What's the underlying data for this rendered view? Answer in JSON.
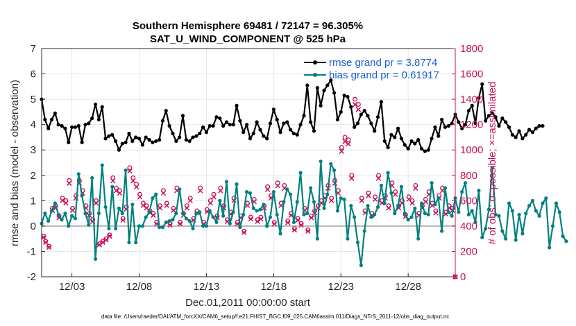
{
  "chart_data": {
    "type": "line",
    "title": "Southern Hemisphere 69481 / 72147 = 96.305%",
    "subtitle": "SAT_U_WIND_COMPONENT @ 525 hPa",
    "xlabel": "Dec.01,2011 00:00:00 start",
    "ylabel": "rmse and bias (model - observation)",
    "y2label": "# of obs: o=possible; ×=assimilated",
    "ylim": [
      -2,
      7
    ],
    "y2lim": [
      0,
      1800
    ],
    "xlim": [
      0.75,
      31.5
    ],
    "yticks": [
      "-2",
      "-1",
      "0",
      "1",
      "2",
      "3",
      "4",
      "5",
      "6",
      "7"
    ],
    "y2ticks": [
      "0",
      "200",
      "400",
      "600",
      "800",
      "1000",
      "1200",
      "1400",
      "1600",
      "1800"
    ],
    "xticks": [
      {
        "x": 3,
        "label": "12/03"
      },
      {
        "x": 8,
        "label": "12/08"
      },
      {
        "x": 13,
        "label": "12/13"
      },
      {
        "x": 18,
        "label": "12/18"
      },
      {
        "x": 23,
        "label": "12/23"
      },
      {
        "x": 28,
        "label": "12/28"
      }
    ],
    "legend_position": "top-right",
    "grid": true,
    "x_start": 0.75,
    "x_step": 0.25,
    "series": [
      {
        "name": "rmse grand pr = 3.8774",
        "color": "#000000",
        "marker": "circle",
        "values": [
          5.0,
          4.2,
          3.85,
          4.2,
          4.45,
          4.0,
          3.95,
          3.85,
          3.3,
          3.9,
          3.9,
          3.95,
          3.3,
          4.0,
          4.05,
          4.25,
          4.8,
          4.2,
          4.7,
          3.45,
          3.55,
          3.6,
          3.35,
          3.0,
          3.25,
          3.3,
          3.65,
          3.35,
          3.5,
          3.45,
          3.2,
          3.5,
          3.4,
          3.3,
          3.35,
          3.4,
          4.15,
          4.55,
          3.95,
          3.65,
          3.35,
          3.5,
          4.35,
          3.4,
          3.35,
          3.5,
          3.55,
          3.65,
          3.9,
          3.7,
          3.95,
          3.95,
          4.3,
          4.25,
          3.95,
          4.1,
          4.0,
          4.0,
          4.75,
          4.15,
          3.7,
          4.0,
          3.45,
          3.65,
          4.1,
          3.8,
          3.55,
          3.45,
          4.05,
          4.6,
          4.2,
          3.7,
          4.05,
          4.1,
          3.8,
          3.65,
          3.6,
          4.0,
          4.35,
          5.55,
          4.1,
          3.75,
          5.45,
          4.75,
          5.35,
          5.55,
          5.75,
          5.25,
          4.2,
          4.5,
          5.15,
          5.1,
          4.7,
          3.9,
          4.05,
          4.4,
          4.55,
          4.35,
          4.05,
          3.75,
          4.3,
          4.9,
          3.35,
          3.1,
          3.6,
          3.5,
          3.85,
          3.45,
          3.2,
          3.05,
          3.35,
          3.25,
          3.4,
          3.05,
          2.95,
          3.0,
          3.45,
          3.9,
          3.55,
          4.2,
          3.9,
          3.95,
          4.05,
          4.4,
          4.1,
          3.85,
          4.0,
          4.55,
          4.75,
          4.05,
          5.05,
          5.6,
          4.15,
          4.35,
          4.45,
          4.3,
          3.95,
          4.25,
          4.1,
          3.9,
          3.6,
          3.5,
          3.75,
          3.45,
          3.6,
          3.8,
          3.7,
          3.85,
          3.95,
          3.95
        ]
      },
      {
        "name": "bias grand pr = 0.61917",
        "color": "#008080",
        "marker": "circle",
        "values": [
          0.1,
          0.5,
          0.2,
          0.6,
          0.9,
          0.45,
          0.25,
          0.5,
          0.0,
          0.4,
          0.3,
          2.05,
          1.2,
          0.5,
          0.05,
          1.9,
          -1.3,
          0.5,
          2.4,
          0.75,
          -0.1,
          1.55,
          -0.1,
          0.7,
          0.5,
          2.2,
          -0.65,
          0.85,
          -0.65,
          0.0,
          0.0,
          0.35,
          0.55,
          1.1,
          1.25,
          -0.05,
          -0.05,
          0.15,
          0.2,
          0.25,
          0.5,
          1.45,
          0.5,
          0.3,
          0.2,
          -0.1,
          0.5,
          0.55,
          0.0,
          0.0,
          0.6,
          0.35,
          0.15,
          1.0,
          0.4,
          1.75,
          0.1,
          0.55,
          1.65,
          -0.05,
          0.45,
          1.35,
          1.3,
          0.7,
          0.6,
          0.65,
          0.85,
          0.0,
          0.35,
          1.35,
          0.45,
          -0.3,
          0.95,
          1.45,
          1.25,
          0.15,
          0.95,
          2.1,
          0.45,
          0.5,
          1.5,
          0.95,
          -0.5,
          2.55,
          0.7,
          1.25,
          2.45,
          2.2,
          0.6,
          1.1,
          1.05,
          -0.5,
          0.8,
          0.35,
          -0.65,
          -1.55,
          -0.2,
          0.8,
          0.35,
          0.45,
          0.75,
          1.6,
          0.9,
          2.1,
          1.3,
          0.5,
          0.8,
          1.55,
          0.5,
          0.25,
          0.35,
          0.7,
          -0.5,
          0.9,
          0.5,
          0.45,
          1.7,
          0.85,
          1.1,
          -0.2,
          1.5,
          0.55,
          0.4,
          1.1,
          0.55,
          1.35,
          1.7,
          0.45,
          0.6,
          0.15,
          1.4,
          -0.45,
          -0.1,
          0.65,
          2.3,
          0.45,
          0.4,
          -0.2,
          -0.5,
          0.9,
          0.6,
          -0.55,
          0.45,
          -0.3,
          0.5,
          0.8,
          1.0,
          0.6,
          0.4,
          0.9,
          1.1,
          -0.85,
          0.0,
          0.9,
          0.55,
          -0.4,
          -0.6
        ]
      }
    ],
    "obs_possible": [
      {
        "x": 0.9,
        "v": 320
      },
      {
        "x": 1.05,
        "v": 280
      },
      {
        "x": 1.3,
        "v": 240
      },
      {
        "x": 1.55,
        "v": 540
      },
      {
        "x": 1.8,
        "v": 560
      },
      {
        "x": 2.05,
        "v": 480
      },
      {
        "x": 2.3,
        "v": 620
      },
      {
        "x": 2.55,
        "v": 600
      },
      {
        "x": 2.8,
        "v": 760
      },
      {
        "x": 3.05,
        "v": 540
      },
      {
        "x": 3.3,
        "v": 640
      },
      {
        "x": 3.55,
        "v": 760
      },
      {
        "x": 3.8,
        "v": 680
      },
      {
        "x": 4.05,
        "v": 560
      },
      {
        "x": 4.3,
        "v": 500
      },
      {
        "x": 4.55,
        "v": 450
      },
      {
        "x": 4.8,
        "v": 600
      },
      {
        "x": 5.05,
        "v": 260
      },
      {
        "x": 5.3,
        "v": 280
      },
      {
        "x": 5.55,
        "v": 300
      },
      {
        "x": 5.8,
        "v": 330
      },
      {
        "x": 6.05,
        "v": 780
      },
      {
        "x": 6.3,
        "v": 700
      },
      {
        "x": 6.55,
        "v": 680
      },
      {
        "x": 6.8,
        "v": 460
      },
      {
        "x": 7.05,
        "v": 550
      },
      {
        "x": 7.3,
        "v": 860
      },
      {
        "x": 7.55,
        "v": 780
      },
      {
        "x": 7.8,
        "v": 730
      },
      {
        "x": 8.05,
        "v": 650
      },
      {
        "x": 8.3,
        "v": 580
      },
      {
        "x": 8.55,
        "v": 560
      },
      {
        "x": 8.8,
        "v": 520
      },
      {
        "x": 9.05,
        "v": 500
      },
      {
        "x": 9.3,
        "v": 430
      },
      {
        "x": 9.55,
        "v": 560
      },
      {
        "x": 9.8,
        "v": 680
      },
      {
        "x": 10.05,
        "v": 580
      },
      {
        "x": 10.3,
        "v": 420
      },
      {
        "x": 10.55,
        "v": 540
      },
      {
        "x": 10.8,
        "v": 700
      },
      {
        "x": 11.05,
        "v": 430
      },
      {
        "x": 11.3,
        "v": 500
      },
      {
        "x": 11.55,
        "v": 560
      },
      {
        "x": 11.8,
        "v": 620
      },
      {
        "x": 12.05,
        "v": 460
      },
      {
        "x": 12.3,
        "v": 520
      },
      {
        "x": 12.55,
        "v": 700
      },
      {
        "x": 12.8,
        "v": 430
      },
      {
        "x": 13.05,
        "v": 530
      },
      {
        "x": 13.3,
        "v": 600
      },
      {
        "x": 13.55,
        "v": 650
      },
      {
        "x": 13.8,
        "v": 480
      },
      {
        "x": 14.05,
        "v": 700
      },
      {
        "x": 14.3,
        "v": 560
      },
      {
        "x": 14.55,
        "v": 450
      },
      {
        "x": 14.8,
        "v": 510
      },
      {
        "x": 15.05,
        "v": 620
      },
      {
        "x": 15.3,
        "v": 430
      },
      {
        "x": 15.55,
        "v": 480
      },
      {
        "x": 15.8,
        "v": 360
      },
      {
        "x": 16.05,
        "v": 580
      },
      {
        "x": 16.3,
        "v": 470
      },
      {
        "x": 16.55,
        "v": 610
      },
      {
        "x": 16.8,
        "v": 450
      },
      {
        "x": 17.05,
        "v": 470
      },
      {
        "x": 17.3,
        "v": 560
      },
      {
        "x": 17.55,
        "v": 710
      },
      {
        "x": 17.8,
        "v": 640
      },
      {
        "x": 18.05,
        "v": 430
      },
      {
        "x": 18.3,
        "v": 740
      },
      {
        "x": 18.55,
        "v": 580
      },
      {
        "x": 18.8,
        "v": 720
      },
      {
        "x": 19.05,
        "v": 440
      },
      {
        "x": 19.3,
        "v": 500
      },
      {
        "x": 19.55,
        "v": 380
      },
      {
        "x": 19.8,
        "v": 460
      },
      {
        "x": 20.05,
        "v": 420
      },
      {
        "x": 20.3,
        "v": 540
      },
      {
        "x": 20.55,
        "v": 370
      },
      {
        "x": 20.8,
        "v": 480
      },
      {
        "x": 21.05,
        "v": 520
      },
      {
        "x": 21.3,
        "v": 560
      },
      {
        "x": 21.55,
        "v": 600
      },
      {
        "x": 21.8,
        "v": 640
      },
      {
        "x": 22.05,
        "v": 720
      },
      {
        "x": 22.3,
        "v": 620
      },
      {
        "x": 22.55,
        "v": 760
      },
      {
        "x": 22.8,
        "v": 680
      },
      {
        "x": 23.05,
        "v": 1020
      },
      {
        "x": 23.3,
        "v": 1100
      },
      {
        "x": 23.55,
        "v": 1080
      },
      {
        "x": 23.8,
        "v": 800
      },
      {
        "x": 24.05,
        "v": 1400
      },
      {
        "x": 24.3,
        "v": 1360
      },
      {
        "x": 24.55,
        "v": 620
      },
      {
        "x": 24.8,
        "v": 520
      },
      {
        "x": 25.05,
        "v": 660
      },
      {
        "x": 25.3,
        "v": 500
      },
      {
        "x": 25.55,
        "v": 630
      },
      {
        "x": 25.8,
        "v": 800
      },
      {
        "x": 26.05,
        "v": 600
      },
      {
        "x": 26.3,
        "v": 640
      },
      {
        "x": 26.55,
        "v": 560
      },
      {
        "x": 26.8,
        "v": 740
      },
      {
        "x": 27.05,
        "v": 670
      },
      {
        "x": 27.3,
        "v": 560
      },
      {
        "x": 27.55,
        "v": 600
      },
      {
        "x": 27.8,
        "v": 490
      },
      {
        "x": 28.05,
        "v": 630
      },
      {
        "x": 28.3,
        "v": 600
      },
      {
        "x": 28.55,
        "v": 720
      },
      {
        "x": 28.8,
        "v": 500
      },
      {
        "x": 29.05,
        "v": 560
      },
      {
        "x": 29.3,
        "v": 610
      },
      {
        "x": 29.55,
        "v": 670
      },
      {
        "x": 29.8,
        "v": 580
      },
      {
        "x": 30.05,
        "v": 520
      },
      {
        "x": 30.3,
        "v": 640
      },
      {
        "x": 30.55,
        "v": 700
      },
      {
        "x": 30.8,
        "v": 510
      },
      {
        "x": 31.05,
        "v": 560
      },
      {
        "x": 31.3,
        "v": 540
      },
      {
        "x": 31.5,
        "v": 0
      }
    ],
    "footer": "data file: /Users/raeder/DAI/ATM_forcXX/CAM6_setup/f.e21.FHIST_BGC.f09_025.CAM6assim.011/Diags_NTrS_2011-12/obs_diag_output.nc"
  }
}
